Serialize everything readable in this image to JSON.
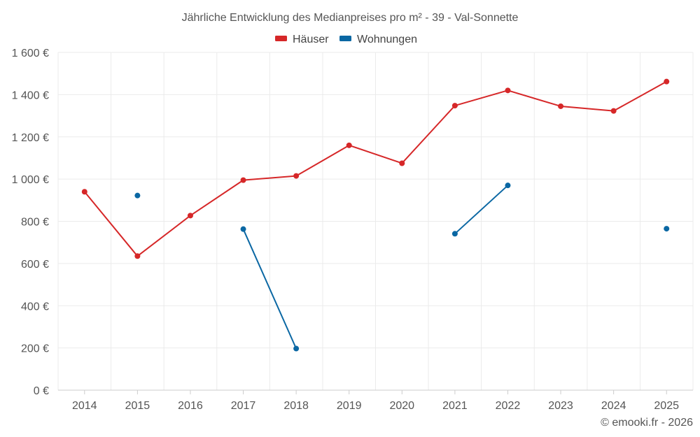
{
  "chart_data": {
    "type": "line",
    "title": "Jährliche Entwicklung des Medianpreises pro m² - 39 - Val-Sonnette",
    "categories": [
      "2014",
      "2015",
      "2016",
      "2017",
      "2018",
      "2019",
      "2020",
      "2021",
      "2022",
      "2023",
      "2024",
      "2025"
    ],
    "ylim": [
      0,
      1600
    ],
    "yticks": [
      0,
      200,
      400,
      600,
      800,
      1000,
      1200,
      1400,
      1600
    ],
    "ytick_labels": [
      "0 €",
      "200 €",
      "400 €",
      "600 €",
      "800 €",
      "1 000 €",
      "1 200 €",
      "1 400 €",
      "1 600 €"
    ],
    "legend_position": "top-center",
    "grid": true,
    "series": [
      {
        "name": "Häuser",
        "color": "#d62728",
        "values": [
          940,
          635,
          827,
          995,
          1015,
          1160,
          1075,
          1348,
          1420,
          1345,
          1323,
          1462
        ]
      },
      {
        "name": "Wohnungen",
        "color": "#0a67a3",
        "values": [
          null,
          922,
          null,
          763,
          197,
          null,
          null,
          741,
          970,
          null,
          null,
          765
        ]
      }
    ]
  },
  "credit": "© emooki.fr - 2026"
}
